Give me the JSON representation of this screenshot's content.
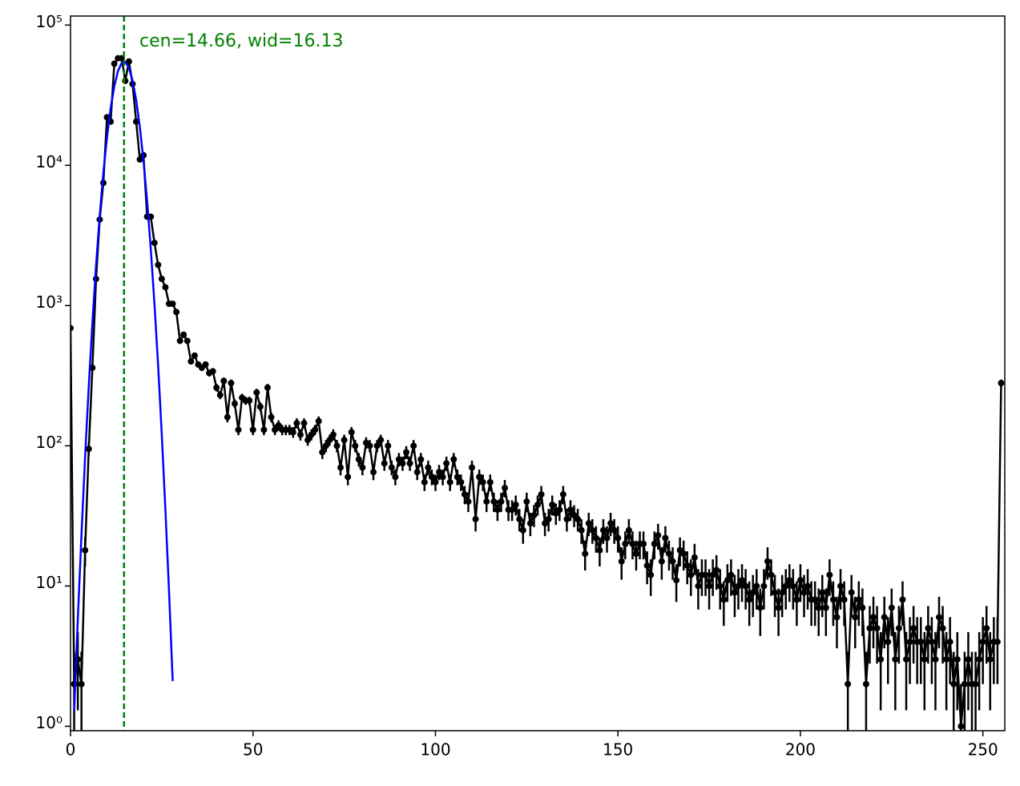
{
  "chart_data": {
    "type": "errorbar",
    "annotation": "cen=14.66, wid=16.13",
    "vline": {
      "value": 14.66,
      "color": "#008000"
    },
    "xlim": [
      0,
      256
    ],
    "xticks": [
      0,
      50,
      100,
      150,
      200,
      250
    ],
    "ylim": [
      0.93,
      116000
    ],
    "log_y": true,
    "yticks": [
      {
        "value": 1,
        "label": "10⁰"
      },
      {
        "value": 10,
        "label": "10¹"
      },
      {
        "value": 100,
        "label": "10²"
      },
      {
        "value": 1000,
        "label": "10³"
      },
      {
        "value": 10000,
        "label": "10⁴"
      },
      {
        "value": 100000,
        "label": "10⁵"
      }
    ],
    "x": [
      0,
      1,
      2,
      3,
      4,
      5,
      6,
      7,
      8,
      9,
      10,
      11,
      12,
      13,
      14,
      15,
      16,
      17,
      18,
      19,
      20,
      21,
      22,
      23,
      24,
      25,
      26,
      27,
      28,
      29,
      30,
      31,
      32,
      33,
      34,
      35,
      36,
      37,
      38,
      39,
      40,
      41,
      42,
      43,
      44,
      45,
      46,
      47,
      48,
      49,
      50,
      51,
      52,
      53,
      54,
      55,
      56,
      57,
      58,
      59,
      60,
      61,
      62,
      63,
      64,
      65,
      66,
      67,
      68,
      69,
      70,
      71,
      72,
      73,
      74,
      75,
      76,
      77,
      78,
      79,
      80,
      81,
      82,
      83,
      84,
      85,
      86,
      87,
      88,
      89,
      90,
      91,
      92,
      93,
      94,
      95,
      96,
      97,
      98,
      99,
      100,
      101,
      102,
      103,
      104,
      105,
      106,
      107,
      108,
      109,
      110,
      111,
      112,
      113,
      114,
      115,
      116,
      117,
      118,
      119,
      120,
      121,
      122,
      123,
      124,
      125,
      126,
      127,
      128,
      129,
      130,
      131,
      132,
      133,
      134,
      135,
      136,
      137,
      138,
      139,
      140,
      141,
      142,
      143,
      144,
      145,
      146,
      147,
      148,
      149,
      150,
      151,
      152,
      153,
      154,
      155,
      156,
      157,
      158,
      159,
      160,
      161,
      162,
      163,
      164,
      165,
      166,
      167,
      168,
      169,
      170,
      171,
      172,
      173,
      174,
      175,
      176,
      177,
      178,
      179,
      180,
      181,
      182,
      183,
      184,
      185,
      186,
      187,
      188,
      189,
      190,
      191,
      192,
      193,
      194,
      195,
      196,
      197,
      198,
      199,
      200,
      201,
      202,
      203,
      204,
      205,
      206,
      207,
      208,
      209,
      210,
      211,
      212,
      213,
      214,
      215,
      216,
      217,
      218,
      219,
      220,
      221,
      222,
      223,
      224,
      225,
      226,
      227,
      228,
      229,
      230,
      231,
      232,
      233,
      234,
      235,
      236,
      237,
      238,
      239,
      240,
      241,
      242,
      243,
      244,
      245,
      246,
      247,
      248,
      249,
      250,
      251,
      252,
      253,
      254,
      255
    ],
    "series": [
      {
        "color": "#000000",
        "values": [
          690,
          2,
          3,
          2,
          18,
          95,
          360,
          1550,
          4100,
          7500,
          22000,
          20500,
          53000,
          58000,
          58000,
          40000,
          55000,
          38000,
          20500,
          11000,
          11800,
          4300,
          4300,
          2800,
          1950,
          1550,
          1350,
          1030,
          1030,
          900,
          560,
          620,
          560,
          400,
          440,
          380,
          360,
          380,
          330,
          340,
          260,
          230,
          290,
          160,
          280,
          200,
          130,
          220,
          210,
          210,
          130,
          240,
          190,
          130,
          260,
          160,
          130,
          140,
          130,
          130,
          130,
          125,
          145,
          120,
          145,
          110,
          120,
          130,
          150,
          90,
          100,
          110,
          120,
          100,
          70,
          110,
          60,
          125,
          100,
          80,
          70,
          105,
          100,
          65,
          100,
          110,
          75,
          100,
          70,
          60,
          80,
          75,
          90,
          75,
          100,
          65,
          80,
          55,
          70,
          60,
          55,
          65,
          60,
          75,
          55,
          80,
          60,
          55,
          45,
          40,
          70,
          30,
          60,
          55,
          40,
          55,
          40,
          35,
          40,
          50,
          35,
          35,
          38,
          30,
          25,
          40,
          28,
          32,
          38,
          45,
          28,
          30,
          38,
          33,
          35,
          45,
          30,
          35,
          32,
          30,
          25,
          17,
          28,
          25,
          22,
          18,
          25,
          22,
          28,
          25,
          22,
          15,
          20,
          25,
          20,
          17,
          20,
          20,
          14,
          12,
          20,
          23,
          15,
          22,
          17,
          15,
          11,
          18,
          17,
          14,
          12,
          16,
          10,
          12,
          12,
          10,
          12,
          13,
          10,
          8,
          11,
          12,
          9,
          10,
          11,
          10,
          8,
          9,
          10,
          7,
          10,
          15,
          12,
          9,
          7,
          9,
          10,
          11,
          10,
          8,
          11,
          9,
          10,
          8,
          8,
          7,
          9,
          7,
          12,
          8,
          6,
          10,
          8,
          2,
          9,
          6,
          8,
          7,
          2,
          5,
          6,
          5,
          3,
          6,
          4,
          7,
          3,
          5,
          8,
          3,
          4,
          5,
          4,
          4,
          3,
          5,
          4,
          3,
          6,
          5,
          3,
          4,
          2,
          3,
          1,
          2,
          3,
          2,
          2,
          3,
          4,
          5,
          3,
          4,
          4,
          280
        ],
        "errors": [
          26,
          1.4,
          1.7,
          1.4,
          4.2,
          9.7,
          19,
          39,
          64,
          87,
          148,
          143,
          230,
          241,
          241,
          200,
          235,
          195,
          143,
          105,
          109,
          66,
          66,
          53,
          44,
          39,
          37,
          32,
          32,
          30,
          24,
          25,
          24,
          20,
          21,
          19,
          19,
          19,
          18,
          18,
          16,
          15,
          17,
          13,
          17,
          14,
          11,
          15,
          14,
          14,
          11,
          15,
          14,
          11,
          16,
          13,
          11,
          12,
          11,
          11,
          11,
          11,
          12,
          11,
          12,
          10,
          11,
          11,
          12,
          9.5,
          10,
          10,
          11,
          10,
          8.4,
          10,
          7.7,
          11,
          10,
          8.9,
          8.4,
          10,
          10,
          8.1,
          10,
          10,
          8.7,
          10,
          8.4,
          7.7,
          8.9,
          8.7,
          9.5,
          8.7,
          10,
          8.1,
          8.9,
          7.4,
          8.4,
          7.7,
          7.4,
          8.1,
          7.7,
          8.7,
          7.4,
          8.9,
          7.7,
          7.4,
          6.7,
          6.3,
          8.4,
          5.5,
          7.7,
          7.4,
          6.3,
          7.4,
          6.3,
          5.9,
          6.3,
          7.1,
          5.9,
          5.9,
          6.2,
          5.5,
          5,
          6.3,
          5.3,
          5.7,
          6.2,
          6.7,
          5.3,
          5.5,
          6.2,
          5.7,
          5.9,
          6.7,
          5.5,
          5.9,
          5.7,
          5.5,
          5,
          4.1,
          5.3,
          5,
          4.7,
          4.2,
          5,
          4.7,
          5.3,
          5,
          4.7,
          3.9,
          4.5,
          5,
          4.5,
          4.1,
          4.5,
          4.5,
          3.7,
          3.5,
          4.5,
          4.8,
          3.9,
          4.7,
          4.1,
          3.9,
          3.3,
          4.2,
          4.1,
          3.7,
          3.5,
          4,
          3.2,
          3.5,
          3.5,
          3.2,
          3.5,
          3.6,
          3.2,
          2.8,
          3.3,
          3.5,
          3,
          3.2,
          3.3,
          3.2,
          2.8,
          3,
          3.2,
          2.6,
          3.2,
          3.9,
          3.5,
          3,
          2.6,
          3,
          3.2,
          3.3,
          3.2,
          2.8,
          3.3,
          3,
          3.2,
          2.8,
          2.8,
          2.6,
          3,
          2.6,
          3.5,
          2.8,
          2.4,
          3.2,
          2.8,
          1.4,
          3,
          2.4,
          2.8,
          2.6,
          1.4,
          2.2,
          2.4,
          2.2,
          1.7,
          2.4,
          2,
          2.6,
          1.7,
          2.2,
          2.8,
          1.7,
          2,
          2.2,
          2,
          2,
          1.7,
          2.2,
          2,
          1.7,
          2.4,
          2.2,
          1.7,
          2,
          1.4,
          1.7,
          1,
          1.4,
          1.7,
          1.4,
          1.4,
          1.7,
          2,
          2.2,
          1.7,
          2,
          2,
          17
        ]
      }
    ],
    "fit": {
      "color": "#0000ff",
      "x": [
        1,
        2,
        3,
        4,
        5,
        6,
        7,
        8,
        9,
        10,
        11,
        12,
        13,
        14,
        15,
        16,
        17,
        18,
        19,
        20,
        21,
        22,
        23,
        24,
        25,
        26,
        27,
        28
      ],
      "values": [
        1.29,
        5.8,
        23,
        84,
        266,
        754,
        1930,
        4370,
        8810,
        15900,
        25600,
        36700,
        47000,
        53600,
        54600,
        49600,
        40200,
        29100,
        18700,
        10800,
        5520,
        2530,
        1030,
        377,
        122,
        35,
        9.1,
        2.1
      ]
    }
  }
}
